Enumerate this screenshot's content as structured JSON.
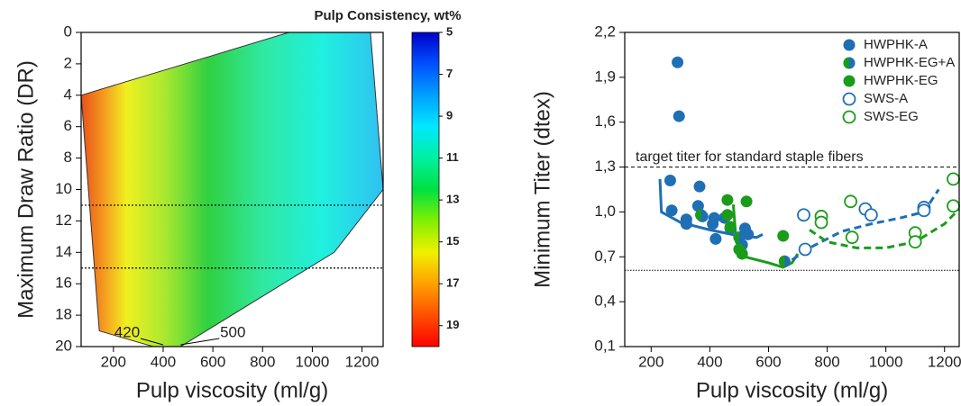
{
  "chart_data": [
    {
      "type": "contour",
      "xlabel": "Pulp viscosity (ml/g)",
      "ylabel": "Maximum Draw Ratio (DR)",
      "colorbar_label": "Pulp Consistency, wt%",
      "xlim": [
        70,
        1285
      ],
      "ylim": [
        0,
        20
      ],
      "y_inverted": true,
      "xticks": [
        200,
        400,
        600,
        800,
        1000,
        1200
      ],
      "yticks": [
        0,
        2,
        4,
        6,
        8,
        10,
        12,
        14,
        16,
        18,
        20
      ],
      "boundary": {
        "x": [
          70,
          906,
          1234,
          1285,
          1088,
          470,
          360,
          143
        ],
        "y": [
          4,
          0,
          0,
          10,
          14,
          20,
          20,
          19
        ]
      },
      "hlines": [
        11,
        15
      ],
      "annotations": [
        {
          "text": "420",
          "x": 400,
          "y": 20
        },
        {
          "text": "500",
          "x": 470,
          "y": 20
        }
      ],
      "clim": [
        5,
        20
      ],
      "cticks": [
        5,
        7,
        9,
        11,
        13,
        15,
        17,
        19
      ],
      "colormap": [
        "#0000c8",
        "#0050ff",
        "#00a0ff",
        "#00e8ff",
        "#00f0a0",
        "#00e040",
        "#80f000",
        "#f0f000",
        "#ffa000",
        "#ff5000",
        "#ff0000"
      ]
    },
    {
      "type": "scatter",
      "xlabel": "Pulp viscosity (ml/g)",
      "ylabel": "Minimum Titer (dtex)",
      "xlim": [
        110,
        1250
      ],
      "ylim": [
        0.1,
        2.2
      ],
      "xticks": [
        200,
        400,
        600,
        800,
        1000,
        1200
      ],
      "yticks": [
        {
          "value": 0.1,
          "label": "0,1"
        },
        {
          "value": 0.4,
          "label": "0,4"
        },
        {
          "value": 0.7,
          "label": "0,7"
        },
        {
          "value": 1.0,
          "label": "1,0"
        },
        {
          "value": 1.3,
          "label": "1,3"
        },
        {
          "value": 1.6,
          "label": "1,6"
        },
        {
          "value": 1.9,
          "label": "1,9"
        },
        {
          "value": 2.2,
          "label": "2,2"
        }
      ],
      "series": [
        {
          "name": "HWPHK-A",
          "marker": "filled",
          "color": "#1f6fb4",
          "x": [
            290,
            295,
            265,
            270,
            320,
            320,
            365,
            360,
            375,
            415,
            410,
            420,
            450,
            470,
            520,
            530,
            510
          ],
          "values": [
            2.0,
            1.64,
            1.21,
            1.01,
            0.95,
            0.92,
            1.17,
            1.04,
            0.97,
            0.96,
            0.92,
            0.82,
            0.96,
            0.89,
            0.89,
            0.85,
            0.78
          ]
        },
        {
          "name": "HWPHK-EG+A",
          "marker": "split",
          "color": "#1f6fb4",
          "color2": "#1a9c1a",
          "x": [
            370,
            500,
            655
          ],
          "values": [
            0.98,
            0.83,
            0.67
          ]
        },
        {
          "name": "HWPHK-EG",
          "marker": "filled",
          "color": "#1a9c1a",
          "x": [
            460,
            525,
            460,
            470,
            500,
            510,
            650
          ],
          "values": [
            1.08,
            1.07,
            0.98,
            0.9,
            0.75,
            0.72,
            0.84
          ]
        },
        {
          "name": "SWS-A",
          "marker": "open",
          "color": "#1f6fb4",
          "x": [
            720,
            725,
            930,
            950,
            1130,
            1130
          ],
          "values": [
            0.98,
            0.75,
            1.02,
            0.98,
            1.03,
            1.01
          ]
        },
        {
          "name": "SWS-EG",
          "marker": "open",
          "color": "#1a9c1a",
          "x": [
            780,
            780,
            880,
            885,
            1100,
            1100,
            1230,
            1230
          ],
          "values": [
            0.97,
            0.93,
            1.07,
            0.83,
            0.86,
            0.8,
            1.22,
            1.04
          ]
        }
      ],
      "fits": [
        {
          "color": "#1f6fb4",
          "dash": false,
          "x": [
            230,
            235,
            300,
            400,
            500,
            560,
            580
          ],
          "y": [
            1.22,
            1.0,
            0.93,
            0.88,
            0.84,
            0.83,
            0.85
          ]
        },
        {
          "color": "#1a9c1a",
          "dash": false,
          "x": [
            480,
            490,
            520,
            600,
            650,
            680,
            700
          ],
          "y": [
            1.05,
            0.8,
            0.7,
            0.66,
            0.63,
            0.66,
            0.72
          ]
        },
        {
          "color": "#1f6fb4",
          "dash": true,
          "x": [
            680,
            750,
            850,
            950,
            1050,
            1130,
            1180
          ],
          "y": [
            0.68,
            0.77,
            0.87,
            0.92,
            0.96,
            1.0,
            1.15
          ]
        },
        {
          "color": "#1a9c1a",
          "dash": true,
          "x": [
            740,
            800,
            900,
            1000,
            1100,
            1200,
            1250
          ],
          "y": [
            0.88,
            0.8,
            0.76,
            0.76,
            0.8,
            0.92,
            1.02
          ]
        }
      ],
      "hlines": [
        {
          "value": 1.3,
          "label": "target titer for standard staple fibers",
          "style": "dashed"
        },
        {
          "value": 0.61,
          "style": "dotted"
        }
      ]
    }
  ]
}
